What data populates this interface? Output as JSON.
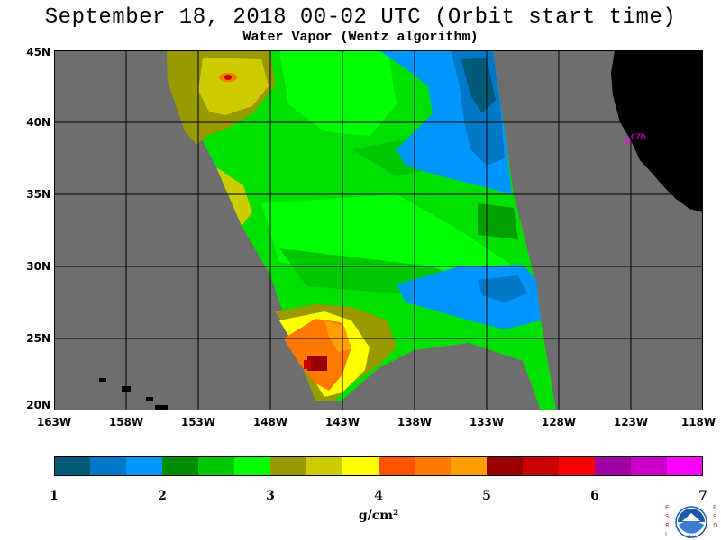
{
  "title": "September 18, 2018  00-02 UTC  (Orbit start time)",
  "subtitle": "Water Vapor (Wentz algorithm)",
  "map": {
    "lat_labels": [
      "45N",
      "40N",
      "35N",
      "30N",
      "25N",
      "20N"
    ],
    "lon_labels": [
      "163W",
      "158W",
      "153W",
      "148W",
      "143W",
      "138W",
      "133W",
      "128W",
      "123W",
      "118W"
    ],
    "station_label": "CZD",
    "colors": {
      "nodata": "#6e6e6e",
      "land": "#000000",
      "grid": "#000000",
      "station": "#ff00ff"
    }
  },
  "colorbar": {
    "ticks": [
      "1",
      "2",
      "3",
      "4",
      "5",
      "6",
      "7"
    ],
    "unit": "g/cm²",
    "colors": [
      "#005a78",
      "#0078c8",
      "#0096ff",
      "#008c00",
      "#00c800",
      "#00ff00",
      "#999900",
      "#cccc00",
      "#ffff00",
      "#ff5500",
      "#ff7800",
      "#ffa000",
      "#960000",
      "#c80000",
      "#ff0000",
      "#a000a0",
      "#c800c8",
      "#ff00ff"
    ]
  },
  "logo": {
    "left_letters": "ESRL",
    "right_letters": "PSD",
    "center_text": "NOAA"
  }
}
